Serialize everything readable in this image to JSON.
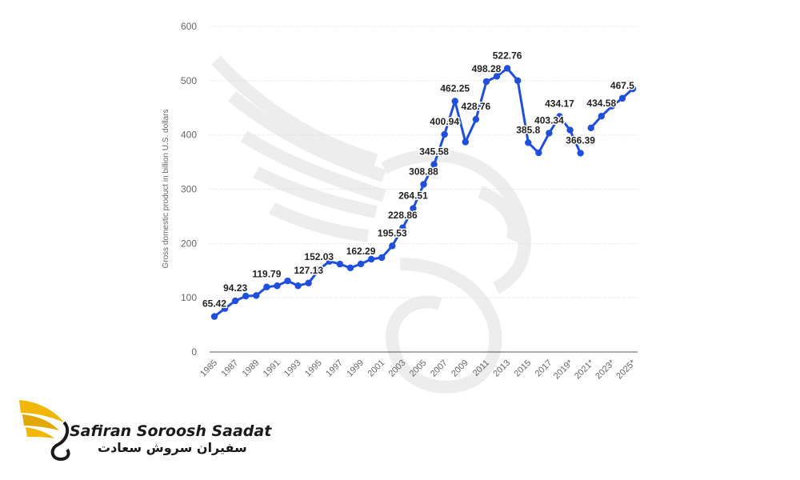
{
  "chart_data": {
    "type": "line",
    "title": "",
    "xlabel": "",
    "ylabel": "Gross domestic product in billion U.S. dollars",
    "ylim": [
      0,
      600
    ],
    "yticks": [
      0,
      100,
      200,
      300,
      400,
      500,
      600
    ],
    "grid": true,
    "x": [
      "1985",
      "1986",
      "1987",
      "1988",
      "1989",
      "1990",
      "1991",
      "1992",
      "1993",
      "1994",
      "1995",
      "1996",
      "1997",
      "1998",
      "1999",
      "2000",
      "2001",
      "2002",
      "2003",
      "2004",
      "2005",
      "2006",
      "2007",
      "2008",
      "2009",
      "2010",
      "2011",
      "2012",
      "2013",
      "2014",
      "2015",
      "2016",
      "2017",
      "2018",
      "2019*",
      "2020*",
      "2021*",
      "2022*",
      "2023*",
      "2024*",
      "2025*"
    ],
    "xtick_labels": [
      "1985",
      "1987",
      "1989",
      "1991",
      "1993",
      "1995",
      "1997",
      "1999",
      "2001",
      "2003",
      "2005",
      "2007",
      "2009",
      "2011",
      "2013",
      "2015",
      "2017",
      "2019*",
      "2021*",
      "2023*",
      "2025*"
    ],
    "series": [
      {
        "color": "#1f4fdc",
        "values": [
          65.42,
          80,
          94.23,
          103,
          104,
          119.79,
          122,
          131,
          122,
          127.13,
          152.03,
          167,
          162,
          155,
          162.29,
          171,
          174,
          195.53,
          228.86,
          264.51,
          308.88,
          345.58,
          400.94,
          462.25,
          387,
          428.76,
          498.28,
          508,
          522.76,
          500,
          385.8,
          367,
          403.34,
          434.17,
          409,
          366.39,
          413,
          434.58,
          453,
          467.5,
          485
        ],
        "segment_break_before": [
          "2021*"
        ]
      }
    ],
    "data_labels": [
      {
        "x": "1985",
        "text": "65.42"
      },
      {
        "x": "1987",
        "text": "94.23"
      },
      {
        "x": "1990",
        "text": "119.79"
      },
      {
        "x": "1994",
        "text": "127.13"
      },
      {
        "x": "1995",
        "text": "152.03"
      },
      {
        "x": "1999",
        "text": "162.29"
      },
      {
        "x": "2002",
        "text": "195.53"
      },
      {
        "x": "2003",
        "text": "228.86"
      },
      {
        "x": "2004",
        "text": "264.51"
      },
      {
        "x": "2005",
        "text": "308.88"
      },
      {
        "x": "2006",
        "text": "345.58"
      },
      {
        "x": "2007",
        "text": "400.94"
      },
      {
        "x": "2008",
        "text": "462.25"
      },
      {
        "x": "2010",
        "text": "428.76"
      },
      {
        "x": "2011",
        "text": "498.28"
      },
      {
        "x": "2013",
        "text": "522.76"
      },
      {
        "x": "2015",
        "text": "385.8"
      },
      {
        "x": "2018",
        "text": "434.17"
      },
      {
        "x": "2017",
        "text": "403.34"
      },
      {
        "x": "2020*",
        "text": "366.39"
      },
      {
        "x": "2022*",
        "text": "434.58"
      },
      {
        "x": "2024*",
        "text": "467.5"
      }
    ]
  },
  "logo": {
    "name_en": "Safiran Soroosh Saadat",
    "name_fa": "سفیران سروش سعادت",
    "accent_color": "#f2b705"
  }
}
